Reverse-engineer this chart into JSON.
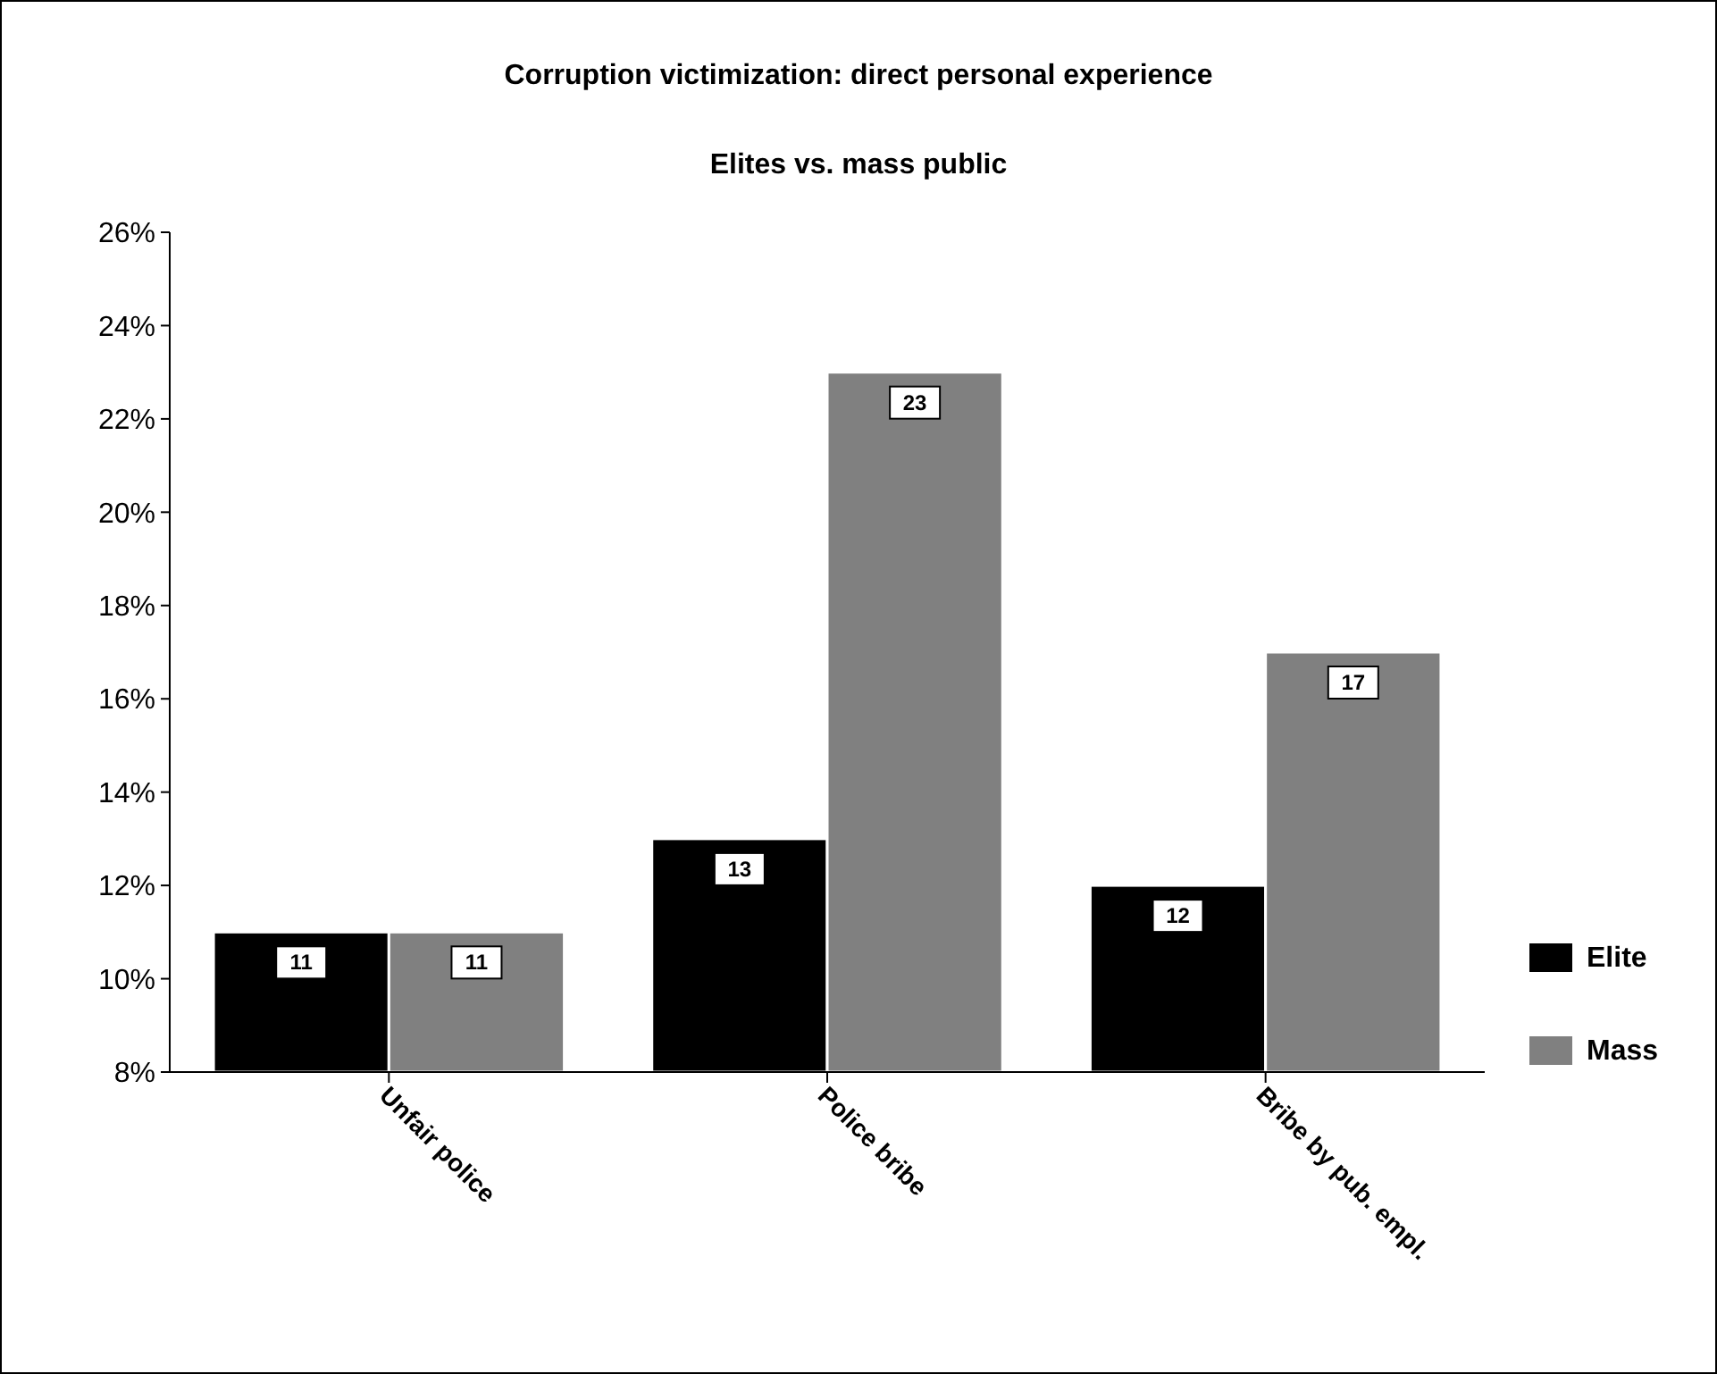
{
  "chart_data": {
    "type": "bar",
    "title": "Corruption victimization: direct personal experience",
    "subtitle": "Elites vs. mass public",
    "categories": [
      "Unfair police",
      "Police bribe",
      "Bribe by pub. empl."
    ],
    "series": [
      {
        "name": "Elite",
        "color": "#000000",
        "values": [
          11,
          13,
          12
        ]
      },
      {
        "name": "Mass",
        "color": "#808080",
        "values": [
          11,
          23,
          17
        ]
      }
    ],
    "ylim": [
      8,
      26
    ],
    "yticks": [
      {
        "value": 8,
        "label": "8%"
      },
      {
        "value": 10,
        "label": "10%"
      },
      {
        "value": 12,
        "label": "12%"
      },
      {
        "value": 14,
        "label": "14%"
      },
      {
        "value": 16,
        "label": "16%"
      },
      {
        "value": 18,
        "label": "18%"
      },
      {
        "value": 20,
        "label": "20%"
      },
      {
        "value": 22,
        "label": "22%"
      },
      {
        "value": 24,
        "label": "24%"
      },
      {
        "value": 26,
        "label": "26%"
      }
    ],
    "data_labels": true,
    "legend": "right",
    "grid": false
  }
}
